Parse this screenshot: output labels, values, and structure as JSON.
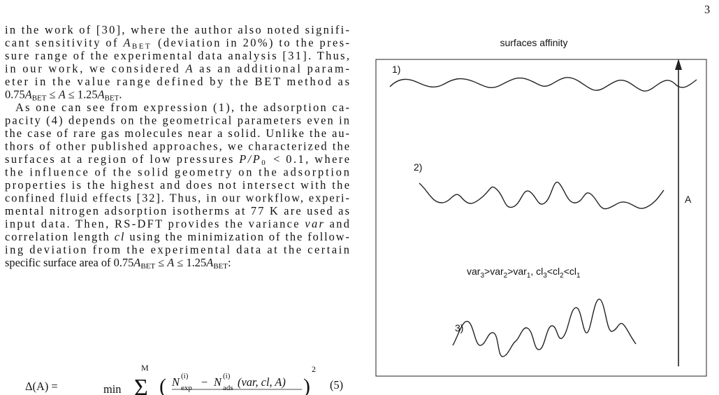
{
  "page_number": "3",
  "body": {
    "lines": [
      [
        "in the work of [30], where the author also noted signifi-"
      ],
      [
        "cant sensitivity of ",
        {
          "math": "A",
          "sub": "BET"
        },
        " (deviation in 20%) to the pres-"
      ],
      [
        "sure range of the experimental data analysis [31]. Thus,"
      ],
      [
        "in our work, we considered ",
        {
          "math": "A"
        },
        " as an additional param-"
      ],
      [
        "eter in the value range defined by the BET method as"
      ],
      [
        "0.75",
        {
          "math": "A",
          "sub": "BET"
        },
        " ≤ ",
        {
          "math": "A"
        },
        " ≤ 1.25",
        {
          "math": "A",
          "sub": "BET"
        },
        "."
      ],
      [
        "As one can see from expression (1), the adsorption ca-"
      ],
      [
        "pacity (4) depends on the geometrical parameters even in"
      ],
      [
        "the case of rare gas molecules near a solid. Unlike the au-"
      ],
      [
        "thors of other published approaches, we characterized the"
      ],
      [
        "surfaces at a region of low pressures ",
        {
          "math": "P/P",
          "sub": "0"
        },
        " < 0.1, where"
      ],
      [
        "the influence of the solid geometry on the adsorption"
      ],
      [
        "properties is the highest and does not intersect with the"
      ],
      [
        "confined fluid effects [32]. Thus, in our workflow, experi-"
      ],
      [
        "mental nitrogen adsorption isotherms at 77 K are used as"
      ],
      [
        "input data. Then, RS-DFT provides the variance ",
        {
          "math": "var"
        },
        " and"
      ],
      [
        "correlation length ",
        {
          "math": "cl"
        },
        " using the minimization of the follow-"
      ],
      [
        "ing deviation from the experimental data at the certain"
      ],
      [
        "specific surface area of 0.75",
        {
          "math": "A",
          "sub": "BET"
        },
        " ≤ ",
        {
          "math": "A"
        },
        " ≤ 1.25",
        {
          "math": "A",
          "sub": "BET"
        },
        ":"
      ]
    ]
  },
  "equation": {
    "lhs": "Δ(A) =",
    "op": "min",
    "sum": "Σ",
    "upper": "M",
    "open": "(",
    "n1": "N",
    "sup1": "(i)",
    "sub1": "exp",
    "minus": "−",
    "n2": "N",
    "sup2": "(i)",
    "sub2": "ads",
    "args": "(var, cl, A)",
    "close": ")",
    "power": "2",
    "number": "(5)"
  },
  "figure": {
    "title": "surfaces affinity",
    "label1": "1)",
    "label2": "2)",
    "label3": "3)",
    "axis": "A",
    "relation": [
      {
        "text": "var"
      },
      {
        "sub": "3"
      },
      {
        "text": ">var"
      },
      {
        "sub": "2"
      },
      {
        "text": ">var"
      },
      {
        "sub": "1"
      },
      {
        "text": ", cl"
      },
      {
        "sub": "3"
      },
      {
        "text": "<cl"
      },
      {
        "sub": "2"
      },
      {
        "text": "<cl"
      },
      {
        "sub": "1"
      }
    ]
  }
}
